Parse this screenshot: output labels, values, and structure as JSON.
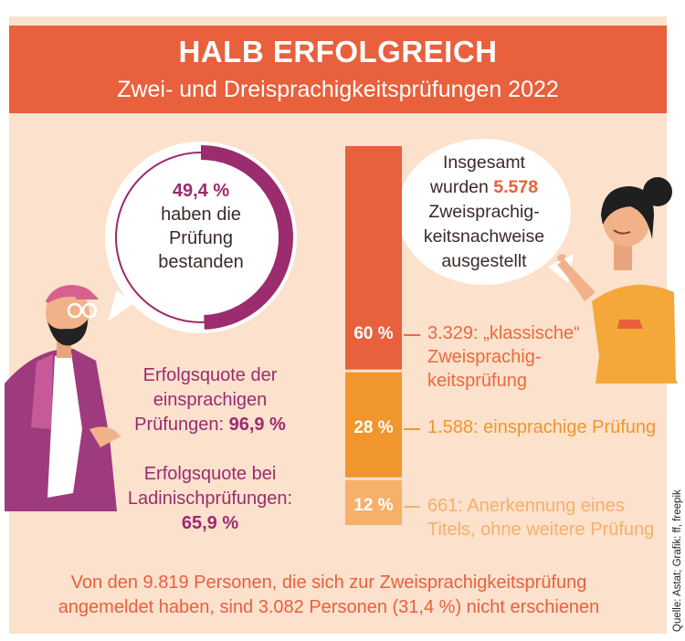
{
  "header": {
    "title": "HALB ERFOLGREICH",
    "subtitle": "Zwei- und Dreisprachigkeitsprüfungen 2022"
  },
  "donut": {
    "value_label": "49,4 %",
    "text_line1": "haben die",
    "text_line2": "Prüfung",
    "text_line3": "bestanden"
  },
  "rates": {
    "mono_line1": "Erfolgsquote der",
    "mono_line2": "einsprachigen",
    "mono_line3_prefix": "Prüfungen: ",
    "mono_value": "96,9 %",
    "ladin_line1": "Erfolgsquote bei",
    "ladin_line2": "Ladinischprüfungen:",
    "ladin_value": "65,9 %"
  },
  "bubble": {
    "line1": "Insgesamt",
    "line2_prefix": "wurden ",
    "total": "5.578",
    "line3": "Zweisprachig-",
    "line4": "keitsnachweise",
    "line5": "ausgestellt"
  },
  "footer": {
    "line1": "Von den 9.819 Personen, die sich zur Zweisprachigkeitsprüfung",
    "line2": "angemeldet haben, sind 3.082 Personen (31,4 %) nicht erschienen"
  },
  "source": "Quelle: Astat; Grafik: ff, freepik",
  "colors": {
    "background": "#fce1cc",
    "banner": "#e8603c",
    "purple": "#9b2c6e",
    "seg_classic": "#e8603c",
    "seg_mono": "#f0962c",
    "seg_recognition": "#f6b06a"
  },
  "chart_data": [
    {
      "type": "pie",
      "values": [
        49.4,
        50.6
      ],
      "labels": [
        "49,4 %",
        ""
      ],
      "text": "haben die Prüfung bestanden"
    },
    {
      "type": "bar",
      "stacked": true,
      "total": 5578,
      "categories": [
        "„klassische“ Zweisprachigkeitsprüfung",
        "einsprachige Prüfung",
        "Anerkennung eines Titels, ohne weitere Prüfung"
      ],
      "values": [
        3329,
        1588,
        661
      ],
      "percent_labels": [
        "60 %",
        "28 %",
        "12 %"
      ],
      "value_labels": [
        "3.329: „klassische“",
        "1.588: einsprachige Prüfung",
        "661: Anerkennung eines"
      ],
      "desc_line2": [
        "Zweisprachig-",
        "",
        "Titels, ohne weitere Prüfung"
      ],
      "desc_line3": [
        "keitsprüfung",
        "",
        ""
      ]
    }
  ]
}
